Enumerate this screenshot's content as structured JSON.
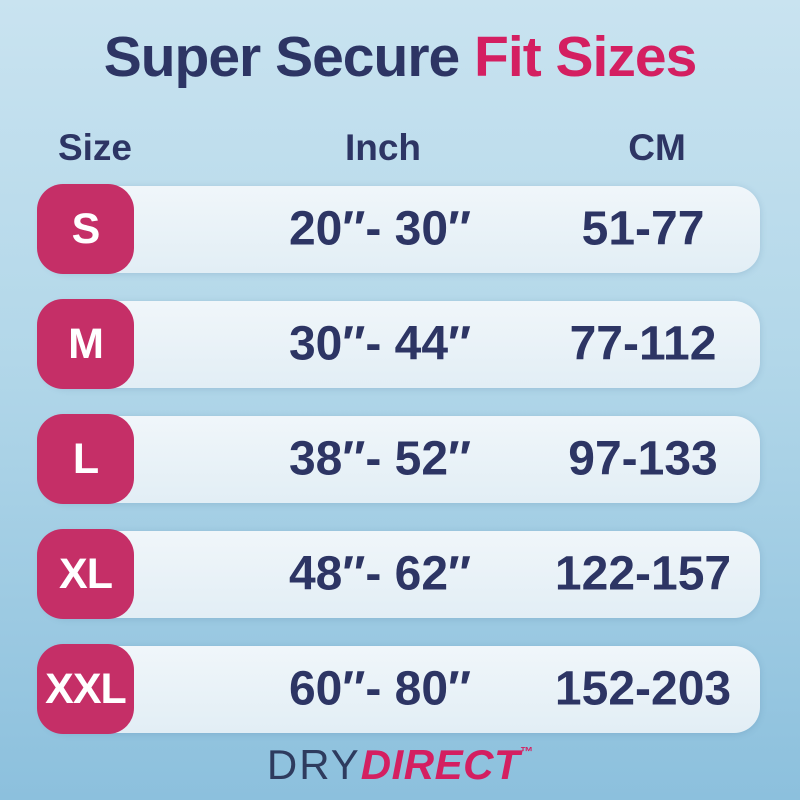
{
  "title": {
    "main": "Super Secure",
    "accent": "Fit Sizes"
  },
  "chart_data": {
    "type": "table",
    "title": "Super Secure Fit Sizes",
    "columns": [
      "Size",
      "Inch",
      "CM"
    ],
    "rows": [
      [
        "S",
        "20″- 30″",
        "51-77"
      ],
      [
        "M",
        "30″- 44″",
        "77-112"
      ],
      [
        "L",
        "38″- 52″",
        "97-133"
      ],
      [
        "XL",
        "48″- 62″",
        "122-157"
      ],
      [
        "XXL",
        "60″- 80″",
        "152-203"
      ]
    ]
  },
  "brand": {
    "name_part1": "DRY",
    "name_part2": "DIRECT",
    "trademark": "™"
  },
  "colors": {
    "navy": "#2d3564",
    "pink": "#d41f61",
    "badge_pink": "#c52f67",
    "badge_text": "#ffffff",
    "pill": "#e2eef5",
    "bg_top": "#c9e3f0",
    "bg_bottom": "#8cc0dd"
  }
}
